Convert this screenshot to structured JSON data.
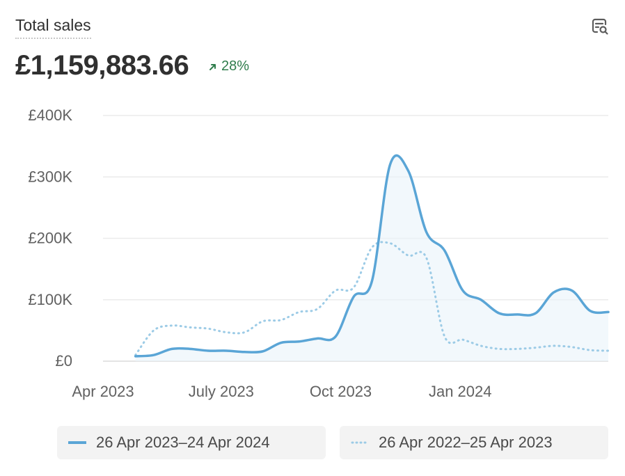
{
  "header": {
    "title": "Total sales",
    "total": "£1,159,883.66",
    "delta": "28%",
    "tool_icon": "table-search-icon"
  },
  "colors": {
    "current": "#5aa5d6",
    "previous": "#9ccbe6",
    "fill": "#eaf4fa",
    "grid": "#ebebeb",
    "positive": "#2f7d4c"
  },
  "legend": {
    "current": "26 Apr 2023–24 Apr 2024",
    "previous": "26 Apr 2022–25 Apr 2023"
  },
  "chart_data": {
    "type": "line",
    "title": "Total sales",
    "ylim": [
      0,
      400000
    ],
    "y_ticks": [
      0,
      100000,
      200000,
      300000,
      400000
    ],
    "y_tick_labels": [
      "£0",
      "£100K",
      "£200K",
      "£300K",
      "£400K"
    ],
    "x_ticks": [
      "Apr 2023",
      "July 2023",
      "Oct 2023",
      "Jan 2024"
    ],
    "grid": true,
    "legend_position": "bottom",
    "series": [
      {
        "name": "26 Apr 2023–24 Apr 2024",
        "style": "solid",
        "x": [
          "2023-04-26",
          "2023-05-10",
          "2023-05-24",
          "2023-06-07",
          "2023-06-21",
          "2023-07-05",
          "2023-07-19",
          "2023-08-02",
          "2023-08-16",
          "2023-08-30",
          "2023-09-13",
          "2023-09-27",
          "2023-10-11",
          "2023-10-25",
          "2023-11-08",
          "2023-11-22",
          "2023-12-06",
          "2023-12-20",
          "2024-01-03",
          "2024-01-17",
          "2024-01-31",
          "2024-02-14",
          "2024-02-28",
          "2024-03-13",
          "2024-03-27",
          "2024-04-10",
          "2024-04-24"
        ],
        "values": [
          8000,
          10000,
          20000,
          20000,
          17000,
          17000,
          15000,
          16000,
          30000,
          32000,
          37000,
          40000,
          105000,
          130000,
          320000,
          310000,
          210000,
          180000,
          115000,
          100000,
          78000,
          76000,
          78000,
          112000,
          115000,
          82000,
          80000
        ]
      },
      {
        "name": "26 Apr 2022–25 Apr 2023",
        "style": "dotted",
        "x": [
          "2023-04-26",
          "2023-05-10",
          "2023-05-24",
          "2023-06-07",
          "2023-06-21",
          "2023-07-05",
          "2023-07-19",
          "2023-08-02",
          "2023-08-16",
          "2023-08-30",
          "2023-09-13",
          "2023-09-27",
          "2023-10-11",
          "2023-10-25",
          "2023-11-08",
          "2023-11-22",
          "2023-12-06",
          "2023-12-20",
          "2024-01-03",
          "2024-01-17",
          "2024-01-31",
          "2024-02-14",
          "2024-02-28",
          "2024-03-13",
          "2024-03-27",
          "2024-04-10",
          "2024-04-24"
        ],
        "values": [
          10000,
          50000,
          58000,
          55000,
          53000,
          47000,
          47000,
          65000,
          67000,
          80000,
          85000,
          115000,
          120000,
          185000,
          192000,
          172000,
          168000,
          40000,
          35000,
          25000,
          20000,
          20000,
          22000,
          25000,
          23000,
          18000,
          17000
        ]
      }
    ]
  }
}
